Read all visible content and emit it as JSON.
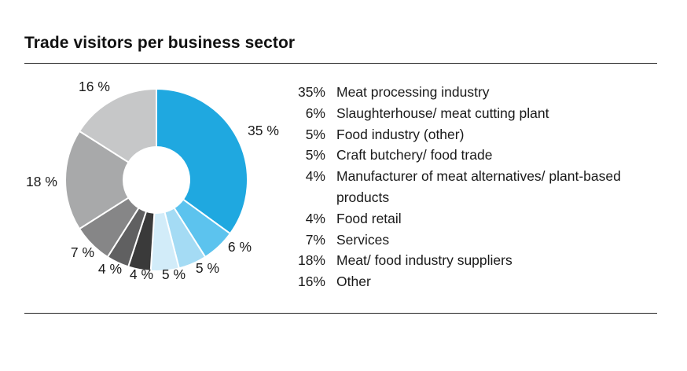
{
  "title": "Trade visitors per business sector",
  "chart_data": {
    "type": "pie",
    "donut": true,
    "title": "Trade visitors per business sector",
    "slices": [
      {
        "label": "Meat processing industry",
        "value": 35,
        "value_label": "35 %",
        "legend_value": "35%",
        "color": "#1fa8e0"
      },
      {
        "label": "Slaughterhouse/ meat cutting plant",
        "value": 6,
        "value_label": "6 %",
        "legend_value": "6%",
        "color": "#5cc3ee"
      },
      {
        "label": "Food industry (other)",
        "value": 5,
        "value_label": "5 %",
        "legend_value": "5%",
        "color": "#a4dbf4"
      },
      {
        "label": "Craft butchery/ food trade",
        "value": 5,
        "value_label": "5 %",
        "legend_value": "5%",
        "color": "#d2ecf9"
      },
      {
        "label": "Manufacturer of meat alternatives/ plant-based products",
        "value": 4,
        "value_label": "4 %",
        "legend_value": "4%",
        "color": "#3a3a3a"
      },
      {
        "label": "Food retail",
        "value": 4,
        "value_label": "4 %",
        "legend_value": "4%",
        "color": "#606061"
      },
      {
        "label": "Services",
        "value": 7,
        "value_label": "7 %",
        "legend_value": "7%",
        "color": "#868687"
      },
      {
        "label": "Meat/ food industry suppliers",
        "value": 18,
        "value_label": "18 %",
        "legend_value": "18%",
        "color": "#a8a9aa"
      },
      {
        "label": "Other",
        "value": 16,
        "value_label": "16 %",
        "legend_value": "16%",
        "color": "#c6c7c8"
      }
    ],
    "start": "12 o'clock",
    "direction": "clockwise",
    "legend_position": "right"
  }
}
